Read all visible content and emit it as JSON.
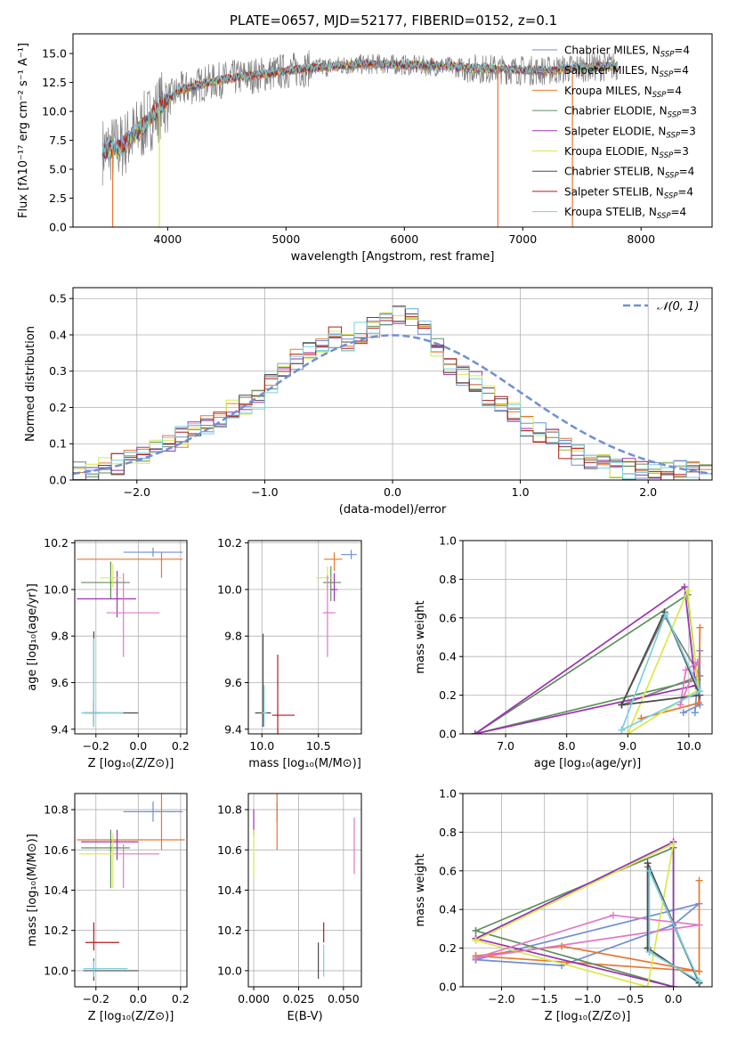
{
  "title": "PLATE=0657, MJD=52177, FIBERID=0152, z=0.1",
  "colors": {
    "chabrier_miles": "#6f8fd6",
    "salpeter_miles": "#7f7f7f",
    "kroupa_miles": "#e8772e",
    "chabrier_elodie": "#5e8f5e",
    "salpeter_elodie": "#9b32b0",
    "kroupa_elodie": "#d7ea4a",
    "chabrier_stelib": "#4a4a4a",
    "salpeter_stelib": "#b01c1c",
    "kroupa_stelib": "#78cfe0",
    "normal_curve": "#6f8fd6",
    "grid": "#b0b0b0"
  },
  "legend": [
    {
      "label": "Chabrier MILES, N",
      "sub": "SSP",
      "tail": "=4",
      "color": "#6f8fd6"
    },
    {
      "label": "Salpeter MILES, N",
      "sub": "SSP",
      "tail": "=4",
      "color": "#7f7f7f"
    },
    {
      "label": "Kroupa MILES, N",
      "sub": "SSP",
      "tail": "=4",
      "color": "#e8772e"
    },
    {
      "label": "Chabrier ELODIE, N",
      "sub": "SSP",
      "tail": "=3",
      "color": "#5e8f5e"
    },
    {
      "label": "Salpeter ELODIE, N",
      "sub": "SSP",
      "tail": "=3",
      "color": "#9b32b0"
    },
    {
      "label": "Kroupa ELODIE, N",
      "sub": "SSP",
      "tail": "=3",
      "color": "#d7ea4a"
    },
    {
      "label": "Chabrier STELIB, N",
      "sub": "SSP",
      "tail": "=4",
      "color": "#4a4a4a"
    },
    {
      "label": "Salpeter STELIB, N",
      "sub": "SSP",
      "tail": "=4",
      "color": "#b01c1c"
    },
    {
      "label": "Kroupa STELIB, N",
      "sub": "SSP",
      "tail": "=4",
      "color": "#78cfe0"
    }
  ],
  "chart_data": [
    {
      "id": "spectrum",
      "type": "line",
      "xlabel": "wavelength [Angstrom, rest frame]",
      "ylabel": "Flux [fλ10⁻¹⁷ erg cm⁻² s⁻¹ A⁻¹]",
      "xlim": [
        3200,
        8600
      ],
      "ylim": [
        0,
        16.7
      ],
      "xticks": [
        4000,
        5000,
        6000,
        7000,
        8000
      ],
      "yticks": [
        0.0,
        2.5,
        5.0,
        7.5,
        10.0,
        12.5,
        15.0
      ],
      "grid": false,
      "legend_position": "right",
      "continuum": {
        "x": [
          3450,
          3600,
          3800,
          3950,
          4100,
          4300,
          4500,
          4800,
          5000,
          5200,
          5500,
          5800,
          6000,
          6300,
          6600,
          6900,
          7200,
          7500,
          7800
        ],
        "y": [
          6.6,
          6.9,
          8.8,
          10.6,
          11.8,
          12.4,
          12.8,
          13.2,
          13.5,
          13.7,
          14.0,
          14.1,
          14.0,
          13.9,
          13.7,
          13.6,
          13.5,
          13.8,
          13.9
        ]
      },
      "dips": [
        {
          "x": 3535,
          "y": 0
        },
        {
          "x": 3930,
          "y": 0
        },
        {
          "x": 6790,
          "y": 0
        },
        {
          "x": 7420,
          "y": 0
        }
      ]
    },
    {
      "id": "residual_hist",
      "type": "bar",
      "xlabel": "(data-model)/error",
      "ylabel": "Normed distribution",
      "xlim": [
        -2.5,
        2.5
      ],
      "ylim": [
        0,
        0.53
      ],
      "xticks": [
        -2,
        -1,
        0,
        1,
        2
      ],
      "yticks": [
        0.0,
        0.1,
        0.2,
        0.3,
        0.4,
        0.5
      ],
      "grid": true,
      "legend": [
        {
          "label": "𝒩(0, 1)",
          "style": "dashed"
        }
      ],
      "legend_position": "top-right",
      "bin_width": 0.1,
      "bins_from": -2.5,
      "reference": [
        0.025,
        0.03,
        0.04,
        0.045,
        0.055,
        0.065,
        0.085,
        0.1,
        0.12,
        0.14,
        0.15,
        0.17,
        0.2,
        0.21,
        0.225,
        0.265,
        0.295,
        0.33,
        0.355,
        0.37,
        0.395,
        0.385,
        0.405,
        0.42,
        0.44,
        0.46,
        0.455,
        0.42,
        0.36,
        0.32,
        0.29,
        0.27,
        0.23,
        0.205,
        0.185,
        0.15,
        0.13,
        0.11,
        0.085,
        0.07,
        0.055,
        0.05,
        0.03,
        0.03,
        0.025,
        0.03,
        0.02,
        0.025,
        0.02,
        0.025
      ]
    },
    {
      "id": "age_vs_Z",
      "type": "scatter",
      "xlabel": "Z [log₁₀(Z/Z⊙)]",
      "ylabel": "age  [log₁₀(age/yr)]",
      "xlim": [
        -0.3,
        0.23
      ],
      "ylim": [
        9.38,
        10.21
      ],
      "xticks": [
        -0.2,
        0.0,
        0.2
      ],
      "yticks": [
        9.4,
        9.6,
        9.8,
        10.0,
        10.2
      ],
      "grid": true,
      "points": [
        {
          "x": 0.07,
          "y": 10.16,
          "xerr": [
            0.14,
            0.14
          ],
          "yerr": [
            0.02,
            0.02
          ],
          "color": "#6f8fd6"
        },
        {
          "x": 0.11,
          "y": 10.13,
          "xerr": [
            0.4,
            0.1
          ],
          "yerr": [
            0.08,
            0.03
          ],
          "color": "#e8772e"
        },
        {
          "x": -0.13,
          "y": 10.03,
          "xerr": [
            0.14,
            0.09
          ],
          "yerr": [
            0.07,
            0.09
          ],
          "color": "#5e8f5e"
        },
        {
          "x": -0.1,
          "y": 9.96,
          "xerr": [
            0.19,
            0.09
          ],
          "yerr": [
            0.08,
            0.12
          ],
          "color": "#9b32b0"
        },
        {
          "x": -0.12,
          "y": 10.05,
          "xerr": [
            0.06,
            0.04
          ],
          "yerr": [
            0.04,
            0.06
          ],
          "color": "#d7ea4a"
        },
        {
          "x": -0.07,
          "y": 9.9,
          "xerr": [
            0.08,
            0.17
          ],
          "yerr": [
            0.19,
            0.17
          ],
          "color": "#e377c2"
        },
        {
          "x": -0.21,
          "y": 9.47,
          "xerr": [
            0.05,
            0.21
          ],
          "yerr": [
            0.06,
            0.35
          ],
          "color": "#4a4a4a"
        },
        {
          "x": -0.21,
          "y": 9.47,
          "xerr": [
            0.04,
            0.03
          ],
          "yerr": [
            0.05,
            0.05
          ],
          "color": "#b01c1c"
        },
        {
          "x": -0.21,
          "y": 9.47,
          "xerr": [
            0.06,
            0.14
          ],
          "yerr": [
            0.06,
            0.32
          ],
          "color": "#78cfe0"
        }
      ]
    },
    {
      "id": "age_vs_mass",
      "type": "scatter",
      "xlabel": "mass [log₁₀(M/M⊙)]",
      "ylabel": "",
      "xlim": [
        9.88,
        10.88
      ],
      "ylim": [
        9.38,
        10.21
      ],
      "xticks": [
        10.0,
        10.5
      ],
      "yticks": [
        9.4,
        9.6,
        9.8,
        10.0,
        10.2
      ],
      "grid": true,
      "points": [
        {
          "x": 10.79,
          "y": 10.15,
          "xerr": [
            0.09,
            0.05
          ],
          "yerr": [
            0.02,
            0.02
          ],
          "color": "#6f8fd6"
        },
        {
          "x": 10.64,
          "y": 10.13,
          "xerr": [
            0.09,
            0.07
          ],
          "yerr": [
            0.05,
            0.03
          ],
          "color": "#e8772e"
        },
        {
          "x": 10.61,
          "y": 10.03,
          "xerr": [
            0.07,
            0.09
          ],
          "yerr": [
            0.08,
            0.07
          ],
          "color": "#5e8f5e"
        },
        {
          "x": 10.64,
          "y": 10.0,
          "xerr": [
            0.03,
            0.03
          ],
          "yerr": [
            0.05,
            0.07
          ],
          "color": "#9b32b0"
        },
        {
          "x": 10.58,
          "y": 10.05,
          "xerr": [
            0.1,
            0.05
          ],
          "yerr": [
            0.05,
            0.05
          ],
          "color": "#d7ea4a"
        },
        {
          "x": 10.58,
          "y": 9.9,
          "xerr": [
            0.04,
            0.07
          ],
          "yerr": [
            0.19,
            0.16
          ],
          "color": "#e377c2"
        },
        {
          "x": 10.01,
          "y": 9.47,
          "xerr": [
            0.07,
            0.07
          ],
          "yerr": [
            0.06,
            0.34
          ],
          "color": "#4a4a4a"
        },
        {
          "x": 10.14,
          "y": 9.46,
          "xerr": [
            0.05,
            0.15
          ],
          "yerr": [
            0.1,
            0.26
          ],
          "color": "#b01c1c"
        },
        {
          "x": 10.02,
          "y": 9.47,
          "xerr": [
            0.02,
            0.02
          ],
          "yerr": [
            0.06,
            0.12
          ],
          "color": "#78cfe0"
        }
      ]
    },
    {
      "id": "weight_vs_age",
      "type": "line",
      "xlabel": "age  [log₁₀(age/yr)]",
      "ylabel": "mass weight",
      "xlim": [
        6.3,
        10.38
      ],
      "ylim": [
        0,
        1
      ],
      "xticks": [
        7,
        8,
        9,
        10
      ],
      "yticks": [
        0.0,
        0.2,
        0.4,
        0.6,
        0.8,
        1.0
      ],
      "grid": true,
      "series": [
        {
          "color": "#6f8fd6",
          "x": [
            9.91,
            10.18,
            10.18,
            10.1
          ],
          "y": [
            0.11,
            0.15,
            0.43,
            0.11
          ]
        },
        {
          "color": "#7f7f7f",
          "x": [
            8.9,
            9.6,
            10.18,
            8.9
          ],
          "y": [
            0.15,
            0.61,
            0.3,
            0.15
          ]
        },
        {
          "color": "#e8772e",
          "x": [
            9.22,
            10.16,
            10.18,
            10.16,
            9.22
          ],
          "y": [
            0.08,
            0.16,
            0.55,
            0.16,
            0.08
          ]
        },
        {
          "color": "#5e8f5e",
          "x": [
            6.5,
            9.98,
            10.14,
            6.5
          ],
          "y": [
            0.0,
            0.72,
            0.28,
            0.0
          ]
        },
        {
          "color": "#9b32b0",
          "x": [
            6.5,
            9.93,
            10.11,
            6.5
          ],
          "y": [
            0.0,
            0.76,
            0.25,
            0.0
          ]
        },
        {
          "color": "#d7ea4a",
          "x": [
            9.0,
            9.98,
            10.16,
            9.0
          ],
          "y": [
            0.0,
            0.74,
            0.23,
            0.0
          ]
        },
        {
          "color": "#e377c2",
          "x": [
            9.86,
            9.95,
            10.14,
            9.86
          ],
          "y": [
            0.15,
            0.33,
            0.37,
            0.15
          ]
        },
        {
          "color": "#4a4a4a",
          "x": [
            8.9,
            9.6,
            10.18,
            8.9
          ],
          "y": [
            0.15,
            0.63,
            0.2,
            0.15
          ]
        },
        {
          "color": "#78cfe0",
          "x": [
            8.9,
            9.62,
            10.18,
            8.9
          ],
          "y": [
            0.02,
            0.62,
            0.22,
            0.02
          ]
        }
      ]
    },
    {
      "id": "mass_vs_Z",
      "type": "scatter",
      "xlabel": "Z [log₁₀(Z/Z⊙)]",
      "ylabel": "mass [log₁₀(M/M⊙)]",
      "xlim": [
        -0.3,
        0.23
      ],
      "ylim": [
        9.92,
        10.88
      ],
      "xticks": [
        -0.2,
        0.0,
        0.2
      ],
      "yticks": [
        10.0,
        10.2,
        10.4,
        10.6,
        10.8
      ],
      "grid": true,
      "points": [
        {
          "x": 0.07,
          "y": 10.79,
          "xerr": [
            0.14,
            0.14
          ],
          "yerr": [
            0.05,
            0.05
          ],
          "color": "#6f8fd6"
        },
        {
          "x": 0.11,
          "y": 10.65,
          "xerr": [
            0.4,
            0.11
          ],
          "yerr": [
            0.05,
            0.23
          ],
          "color": "#e8772e"
        },
        {
          "x": -0.13,
          "y": 10.61,
          "xerr": [
            0.14,
            0.09
          ],
          "yerr": [
            0.2,
            0.09
          ],
          "color": "#5e8f5e"
        },
        {
          "x": -0.1,
          "y": 10.64,
          "xerr": [
            0.17,
            0.1
          ],
          "yerr": [
            0.09,
            0.06
          ],
          "color": "#9b32b0"
        },
        {
          "x": -0.12,
          "y": 10.58,
          "xerr": [
            0.16,
            0.03
          ],
          "yerr": [
            0.17,
            0.1
          ],
          "color": "#d7ea4a"
        },
        {
          "x": -0.07,
          "y": 10.58,
          "xerr": [
            0.04,
            0.17
          ],
          "yerr": [
            0.17,
            0.05
          ],
          "color": "#e377c2"
        },
        {
          "x": -0.21,
          "y": 10.0,
          "xerr": [
            0.05,
            0.21
          ],
          "yerr": [
            0.05,
            0.06
          ],
          "color": "#4a4a4a"
        },
        {
          "x": -0.21,
          "y": 10.14,
          "xerr": [
            0.04,
            0.12
          ],
          "yerr": [
            0.04,
            0.1
          ],
          "color": "#b01c1c"
        },
        {
          "x": -0.21,
          "y": 10.01,
          "xerr": [
            0.05,
            0.16
          ],
          "yerr": [
            0.04,
            0.04
          ],
          "color": "#78cfe0"
        }
      ]
    },
    {
      "id": "mass_vs_ebv",
      "type": "scatter",
      "xlabel": "E(B-V)",
      "ylabel": "",
      "xlim": [
        -0.003,
        0.06
      ],
      "ylim": [
        9.92,
        10.88
      ],
      "xticks": [
        0.0,
        0.025,
        0.05
      ],
      "xticklabels": [
        "0.000",
        "0.025",
        "0.050"
      ],
      "yticks": [
        10.0,
        10.2,
        10.4,
        10.6,
        10.8
      ],
      "grid": true,
      "points": [
        {
          "x": 0.013,
          "y": 10.79,
          "xerr": [
            0,
            0
          ],
          "yerr": [
            0.05,
            0.05
          ],
          "color": "#6f8fd6"
        },
        {
          "x": 0.013,
          "y": 10.65,
          "xerr": [
            0,
            0
          ],
          "yerr": [
            0.05,
            0.23
          ],
          "color": "#e8772e"
        },
        {
          "x": 0.0,
          "y": 10.72,
          "xerr": [
            0,
            0
          ],
          "yerr": [
            0.05,
            0.08
          ],
          "color": "#9b32b0"
        },
        {
          "x": 0.0,
          "y": 10.55,
          "xerr": [
            0,
            0
          ],
          "yerr": [
            0.09,
            0.15
          ],
          "color": "#d7ea4a"
        },
        {
          "x": 0.056,
          "y": 10.58,
          "xerr": [
            0,
            0
          ],
          "yerr": [
            0.1,
            0.18
          ],
          "color": "#e377c2"
        },
        {
          "x": 0.036,
          "y": 10.05,
          "xerr": [
            0,
            0
          ],
          "yerr": [
            0.09,
            0.09
          ],
          "color": "#4a4a4a"
        },
        {
          "x": 0.039,
          "y": 10.19,
          "xerr": [
            0,
            0
          ],
          "yerr": [
            0.05,
            0.05
          ],
          "color": "#b01c1c"
        },
        {
          "x": 0.039,
          "y": 10.05,
          "xerr": [
            0,
            0
          ],
          "yerr": [
            0.08,
            0.08
          ],
          "color": "#78cfe0"
        }
      ]
    },
    {
      "id": "weight_vs_Z",
      "type": "line",
      "xlabel": "Z [log₁₀(Z/Z⊙)]",
      "ylabel": "mass weight",
      "xlim": [
        -2.45,
        0.45
      ],
      "ylim": [
        0,
        1
      ],
      "xticks": [
        -2.0,
        -1.5,
        -1.0,
        -0.5,
        0.0
      ],
      "yticks": [
        0.0,
        0.2,
        0.4,
        0.6,
        0.8,
        1.0
      ],
      "grid": true,
      "series": [
        {
          "color": "#6f8fd6",
          "x": [
            -2.3,
            -1.3,
            0.0,
            0.3,
            -2.3
          ],
          "y": [
            0.14,
            0.11,
            0.32,
            0.43,
            0.14
          ]
        },
        {
          "color": "#7f7f7f",
          "x": [
            -0.3,
            -0.3,
            0.3,
            -0.3
          ],
          "y": [
            0.2,
            0.62,
            0.02,
            0.2
          ]
        },
        {
          "color": "#e8772e",
          "x": [
            -2.3,
            -1.3,
            0.3,
            0.3,
            0.3,
            -2.3
          ],
          "y": [
            0.16,
            0.21,
            0.08,
            0.55,
            0.08,
            0.16
          ]
        },
        {
          "color": "#5e8f5e",
          "x": [
            -2.3,
            0.0,
            0.0,
            -2.3
          ],
          "y": [
            0.29,
            0.72,
            0.0,
            0.29
          ]
        },
        {
          "color": "#9b32b0",
          "x": [
            -2.3,
            0.0,
            0.0,
            -2.3
          ],
          "y": [
            0.25,
            0.75,
            0.0,
            0.25
          ]
        },
        {
          "color": "#d7ea4a",
          "x": [
            -2.3,
            0.0,
            -0.3,
            -2.3
          ],
          "y": [
            0.24,
            0.74,
            0.0,
            0.24
          ]
        },
        {
          "color": "#e377c2",
          "x": [
            -2.3,
            -0.7,
            0.3,
            -2.3
          ],
          "y": [
            0.15,
            0.37,
            0.32,
            0.15
          ]
        },
        {
          "color": "#4a4a4a",
          "x": [
            -0.3,
            -0.3,
            0.3,
            -0.3
          ],
          "y": [
            0.2,
            0.64,
            0.02,
            0.2
          ]
        },
        {
          "color": "#78cfe0",
          "x": [
            -0.28,
            -0.28,
            0.3,
            -0.28
          ],
          "y": [
            0.18,
            0.6,
            0.03,
            0.18
          ]
        }
      ]
    }
  ]
}
